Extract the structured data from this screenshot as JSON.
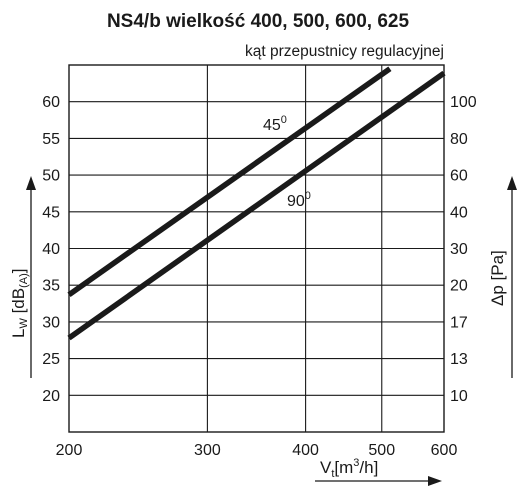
{
  "chart_data": {
    "type": "line",
    "title": "NS4/b wielkość 400, 500, 600, 625",
    "subtitle": "kąt przepustnicy regulacyjnej",
    "x_axis": {
      "label_main": "V",
      "label_sub": "t",
      "label_open": "[m",
      "label_sup": "3",
      "label_close": "/h]",
      "scale": "log",
      "range": [
        200,
        600
      ],
      "ticks": [
        200,
        300,
        400,
        500,
        600
      ],
      "tick_labels": [
        "200",
        "300",
        "400",
        "500",
        "600"
      ]
    },
    "y_left": {
      "label_main": "L",
      "label_sub": "W",
      "label_open": " [dB",
      "label_unit_sub": "(A)",
      "label_close": "]",
      "range": [
        15,
        65
      ],
      "ticks": [
        20,
        25,
        30,
        35,
        40,
        45,
        50,
        55,
        60
      ],
      "tick_labels": [
        "20",
        "25",
        "30",
        "35",
        "40",
        "45",
        "50",
        "55",
        "60"
      ]
    },
    "y_right": {
      "label": "Δp [Pa]",
      "tick_labels": [
        "10",
        "13",
        "17",
        "20",
        "30",
        "40",
        "60",
        "80",
        "100"
      ]
    },
    "grid": true,
    "series": [
      {
        "name": "45",
        "name_sup": "0",
        "x": [
          200,
          512
        ],
        "y": [
          33.7,
          64.5
        ]
      },
      {
        "name": "90",
        "name_sup": "0",
        "x": [
          200,
          600
        ],
        "y": [
          27.8,
          63.9
        ]
      }
    ],
    "colors": {
      "line": "#1a1a1a",
      "grid": "#1a1a1a"
    }
  }
}
